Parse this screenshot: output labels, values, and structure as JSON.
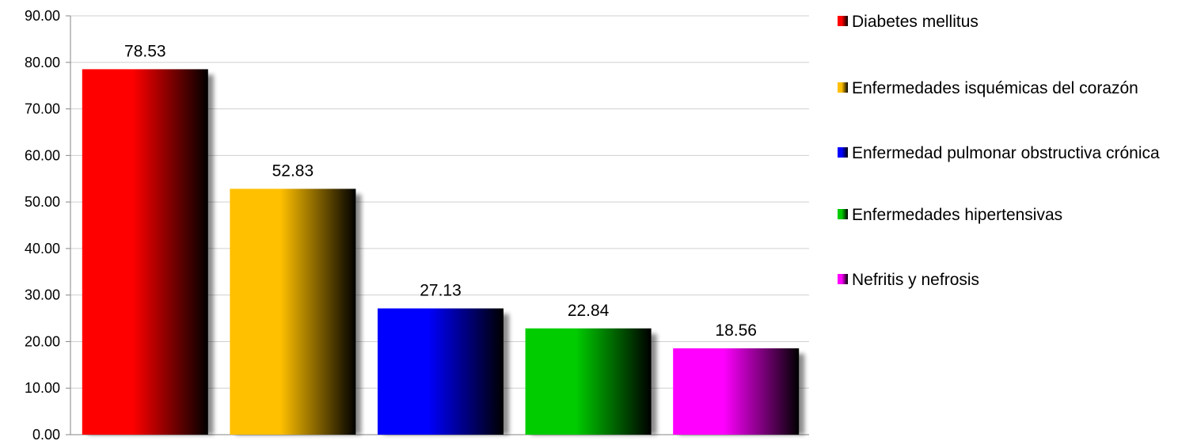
{
  "chart_data": {
    "type": "bar",
    "categories": [
      "Diabetes mellitus",
      "Enfermedades isquémicas del corazón",
      "Enfermedad pulmonar obstructiva crónica",
      "Enfermedades hipertensivas",
      "Nefritis y nefrosis"
    ],
    "values": [
      78.53,
      52.83,
      27.13,
      22.84,
      18.56
    ],
    "data_labels": [
      "78.53",
      "52.83",
      "27.13",
      "22.84",
      "18.56"
    ],
    "colors": [
      "#ff0000",
      "#ffc000",
      "#0000ff",
      "#00cc00",
      "#ff00ff"
    ],
    "ylim": [
      0,
      90
    ],
    "yticks": [
      0,
      10,
      20,
      30,
      40,
      50,
      60,
      70,
      80,
      90
    ],
    "ytick_labels": [
      "0.00",
      "10.00",
      "20.00",
      "30.00",
      "40.00",
      "50.00",
      "60.00",
      "70.00",
      "80.00",
      "90.00"
    ],
    "grid": true,
    "legend": {
      "position": "right",
      "entries": [
        "Diabetes mellitus",
        "Enfermedades isquémicas del corazón",
        "Enfermedad pulmonar obstructiva crónica",
        "Enfermedades hipertensivas",
        "Nefritis y nefrosis"
      ]
    },
    "title": "",
    "xlabel": "",
    "ylabel": ""
  }
}
